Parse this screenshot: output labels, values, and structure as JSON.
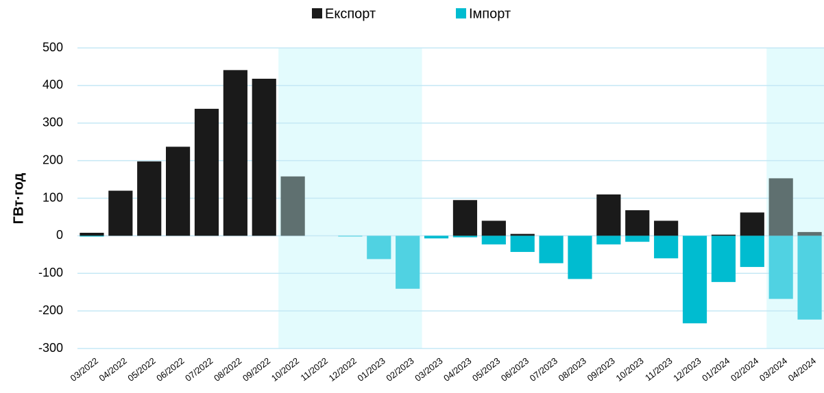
{
  "chart_data": {
    "type": "bar",
    "y_label": "ГВт·год",
    "categories": [
      "03/2022",
      "04/2022",
      "05/2022",
      "06/2022",
      "07/2022",
      "08/2022",
      "09/2022",
      "10/2022",
      "11/2022",
      "12/2022",
      "01/2023",
      "02/2023",
      "03/2023",
      "04/2023",
      "05/2023",
      "06/2023",
      "07/2023",
      "08/2023",
      "09/2023",
      "10/2023",
      "11/2023",
      "12/2023",
      "01/2024",
      "02/2024",
      "03/2024",
      "04/2024"
    ],
    "series": [
      {
        "name": "Експорт",
        "color": "#1a1a1a",
        "highlight_color": "#5f7070",
        "values": [
          8,
          120,
          198,
          237,
          338,
          441,
          418,
          158,
          0,
          0,
          0,
          0,
          0,
          95,
          40,
          5,
          0,
          0,
          110,
          68,
          40,
          0,
          3,
          62,
          153,
          10
        ]
      },
      {
        "name": "Імпорт",
        "color": "#00bcd0",
        "highlight_color": "#50d2e2",
        "values": [
          -2,
          0,
          0,
          0,
          0,
          0,
          0,
          0,
          0,
          -2,
          -62,
          -141,
          -7,
          -4,
          -23,
          -43,
          -73,
          -115,
          -23,
          -16,
          -60,
          -233,
          -123,
          -83,
          -168,
          -223
        ]
      }
    ],
    "highlight": [
      [
        "10/2022",
        "02/2023"
      ],
      [
        "03/2024",
        "04/2024"
      ]
    ],
    "highlight_fill": "#e3fbfd",
    "ylim": [
      -300,
      500
    ],
    "yticks": [
      -300,
      -200,
      -100,
      0,
      100,
      200,
      300,
      400,
      500
    ],
    "grid": true,
    "legend": "top"
  }
}
